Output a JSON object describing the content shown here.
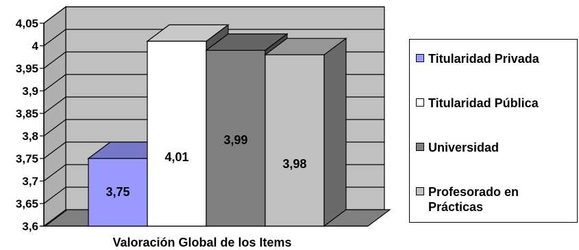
{
  "chart_data": {
    "type": "bar",
    "title": "",
    "xlabel": "Valoración Global de los Items",
    "ylabel": "",
    "ylim": [
      3.6,
      4.05
    ],
    "yticks": [
      "3,6",
      "3,65",
      "3,7",
      "3,75",
      "3,8",
      "3,85",
      "3,9",
      "3,95",
      "4",
      "4,05"
    ],
    "categories": [
      "Valoración Global de los Items"
    ],
    "grid": true,
    "legend_position": "right",
    "series": [
      {
        "name": "Titularidad Privada",
        "values": [
          3.75
        ],
        "label": "3,75",
        "color": "#9999ff"
      },
      {
        "name": "Titularidad Pública",
        "values": [
          4.01
        ],
        "label": "4,01",
        "color": "#ffffff"
      },
      {
        "name": "Universidad",
        "values": [
          3.99
        ],
        "label": "3,99",
        "color": "#808080"
      },
      {
        "name": "Profesorado en Prácticas",
        "values": [
          3.98
        ],
        "label": "3,98",
        "color": "#c0c0c0"
      }
    ],
    "wall_color": "#c0c0c0"
  }
}
